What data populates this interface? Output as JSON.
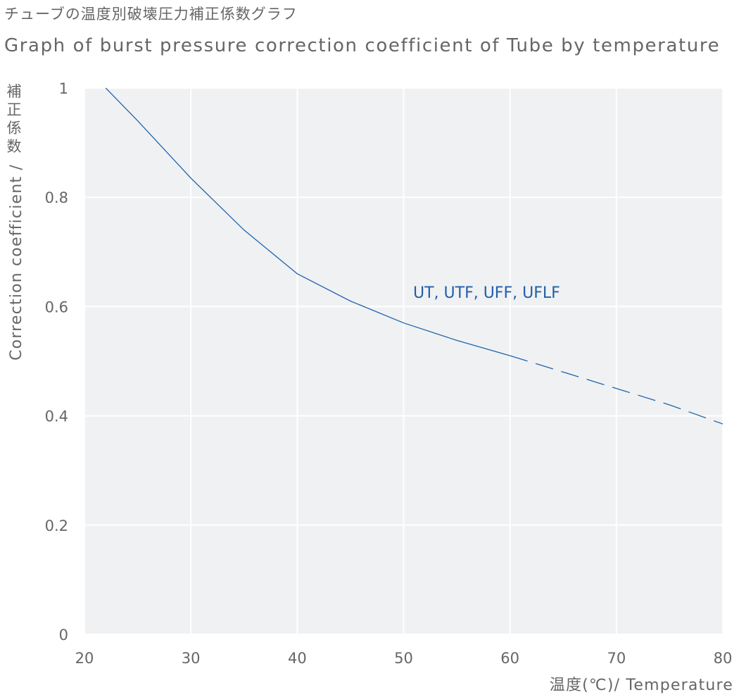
{
  "titles": {
    "japanese": "チューブの温度別破壊圧力補正係数グラフ",
    "english": "Graph of burst pressure correction coefficient of Tube by temperature"
  },
  "chart_data": {
    "type": "line",
    "xlabel": "温度(℃)/ Temperature",
    "ylabel_ja": "補正係数",
    "ylabel_en": "Correction coefficient /",
    "xlim": [
      20,
      80
    ],
    "ylim": [
      0,
      1
    ],
    "x_ticks": [
      20,
      30,
      40,
      50,
      60,
      70,
      80
    ],
    "y_ticks": [
      {
        "value": 0,
        "label": "0"
      },
      {
        "value": 0.2,
        "label": "0.2"
      },
      {
        "value": 0.4,
        "label": "0.4"
      },
      {
        "value": 0.6,
        "label": "0.6"
      },
      {
        "value": 0.8,
        "label": "0.8"
      },
      {
        "value": 1,
        "label": "1"
      }
    ],
    "grid": true,
    "colors": {
      "background": "#f0f1f3",
      "grid": "#ffffff",
      "line": "#1f64ad",
      "label": "#1f5fa8",
      "text": "#666666"
    },
    "series": [
      {
        "name": "UT, UTF, UFF, UFLF",
        "solid": [
          [
            22,
            1.0
          ],
          [
            25,
            0.94
          ],
          [
            30,
            0.835
          ],
          [
            35,
            0.74
          ],
          [
            40,
            0.66
          ],
          [
            45,
            0.61
          ],
          [
            50,
            0.57
          ],
          [
            55,
            0.538
          ],
          [
            60,
            0.51
          ]
        ],
        "dashed": [
          [
            60,
            0.51
          ],
          [
            65,
            0.48
          ],
          [
            70,
            0.45
          ],
          [
            75,
            0.42
          ],
          [
            80,
            0.385
          ]
        ]
      }
    ]
  }
}
